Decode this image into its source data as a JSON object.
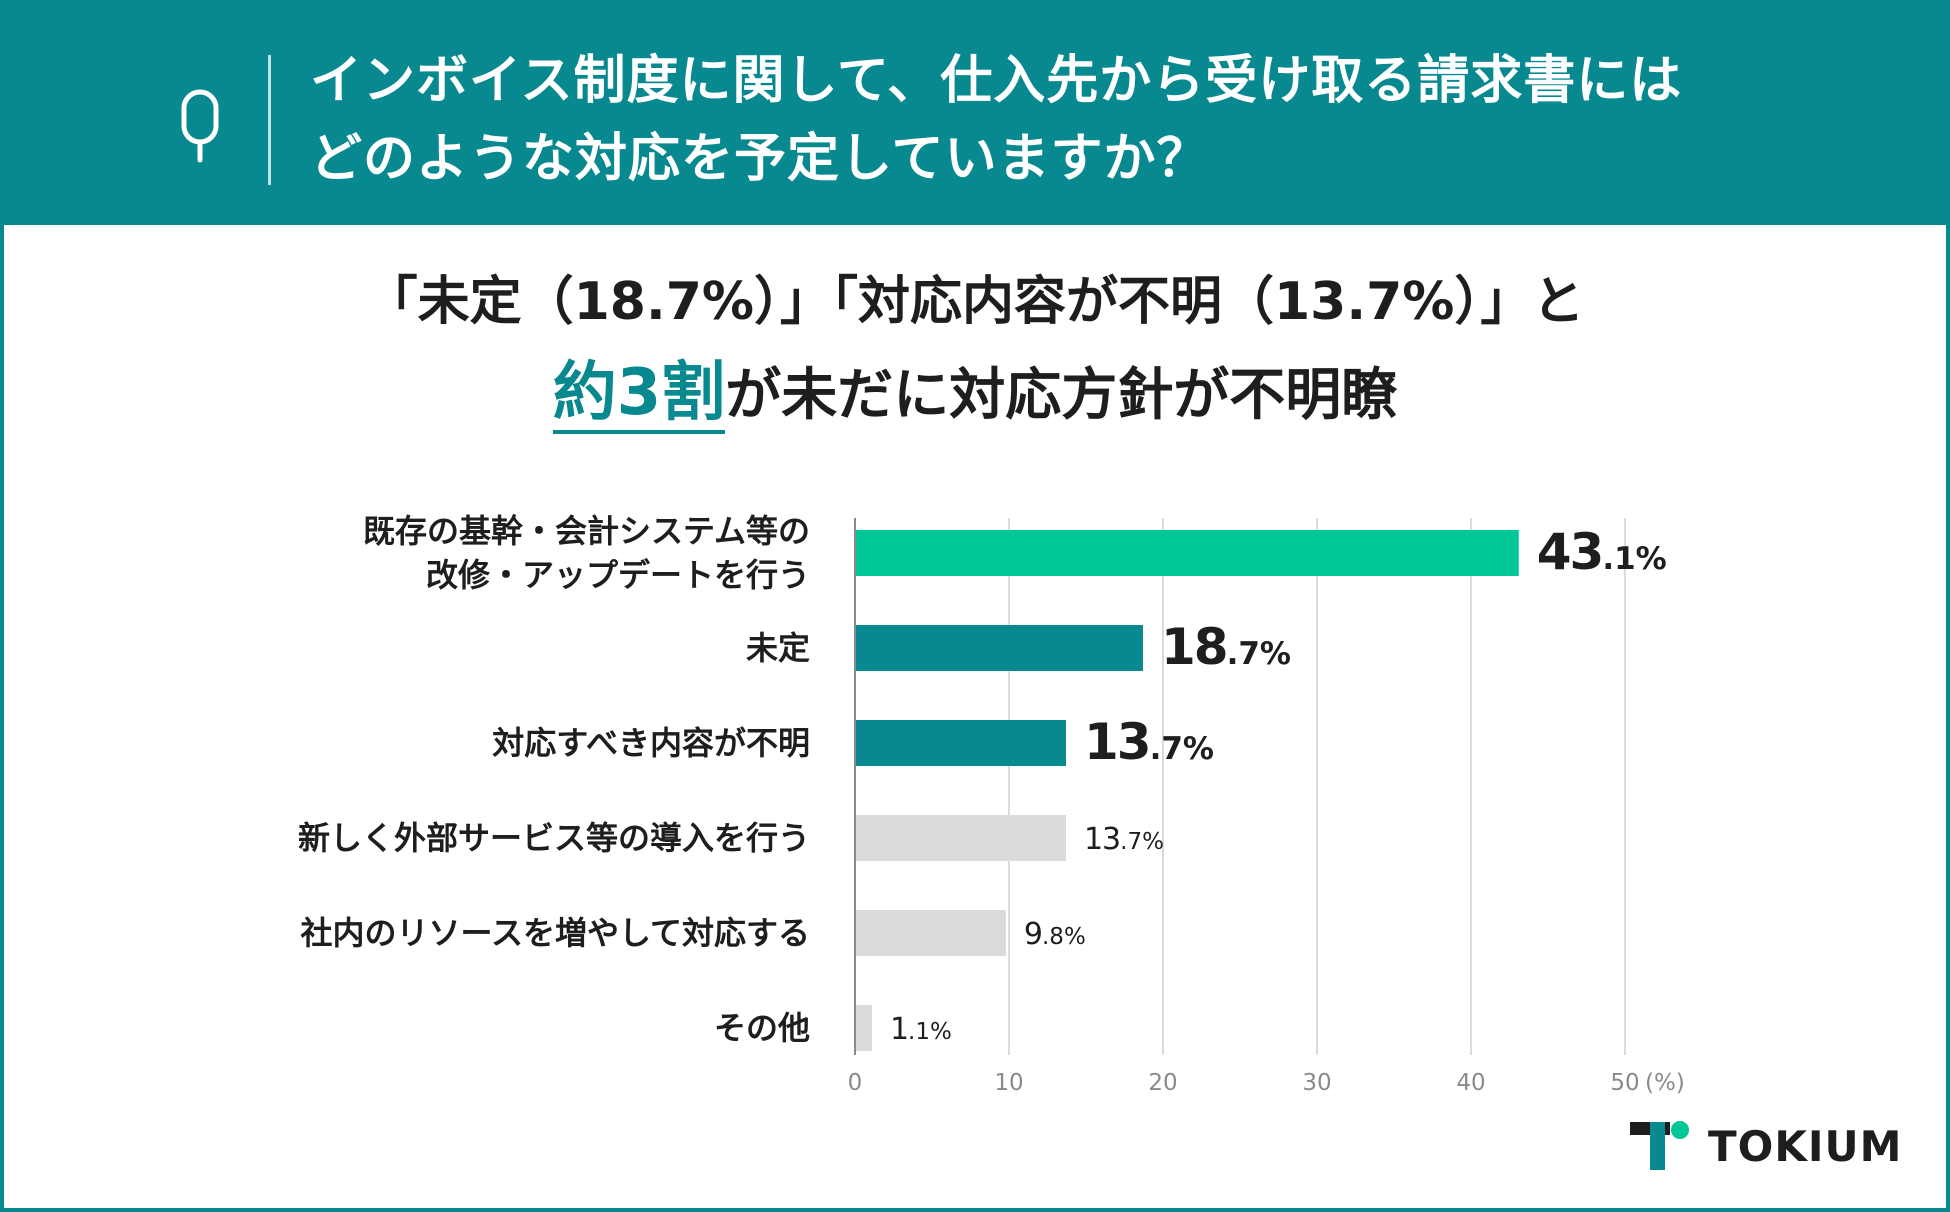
{
  "header": {
    "question_line1": "インボイス制度に関して、仕入先から受け取る請求書には",
    "question_line2": "どのような対応を予定していますか？"
  },
  "headline": {
    "line1": "「未定（18.7%）」「対応内容が不明（13.7%）」と",
    "highlight": "約3割",
    "line2_rest": "が未だに対応方針が不明瞭"
  },
  "colors": {
    "teal": "#08888f",
    "green": "#00c896",
    "gray": "#d9dbdc",
    "text": "#1e1e1e"
  },
  "chart_data": {
    "type": "bar",
    "orientation": "horizontal",
    "categories": [
      "既存の基幹・会計システム等の\n改修・アップデートを行う",
      "未定",
      "対応すべき内容が不明",
      "新しく外部サービス等の導入を行う",
      "社内のリソースを増やして対応する",
      "その他"
    ],
    "values": [
      43.1,
      18.7,
      13.7,
      13.7,
      9.8,
      1.1
    ],
    "value_labels": [
      {
        "int": "43",
        "dec": ".1%"
      },
      {
        "int": "18",
        "dec": ".7%"
      },
      {
        "int": "13",
        "dec": ".7%"
      },
      {
        "int": "13",
        "dec": ".7%"
      },
      {
        "int": "9",
        "dec": ".8%"
      },
      {
        "int": "1",
        "dec": ".1%"
      }
    ],
    "bar_colors": [
      "#00c896",
      "#08888f",
      "#08888f",
      "#d9dbdc",
      "#d9dbdc",
      "#d9dbdc"
    ],
    "emphasized": [
      true,
      true,
      true,
      false,
      false,
      false
    ],
    "xlim": [
      0,
      50
    ],
    "xticks": [
      0,
      10,
      20,
      30,
      40,
      50
    ],
    "xunit": "(%)",
    "grid": true
  },
  "brand": {
    "name": "TOKIUM"
  }
}
